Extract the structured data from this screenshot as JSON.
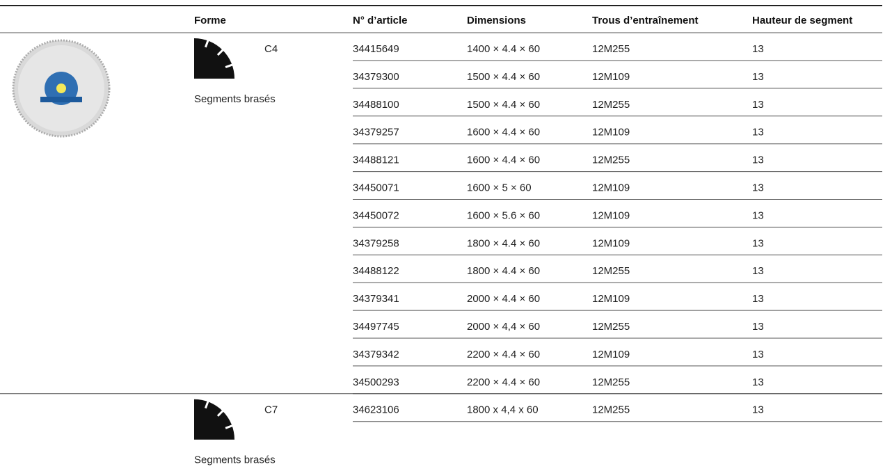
{
  "table": {
    "headers": [
      "Forme",
      "N° d’article",
      "Dimensions",
      "Trous d’entraînement",
      "Hauteur de segment"
    ],
    "groups": [
      {
        "shape": "C4",
        "note": "Segments brasés",
        "rows": [
          [
            "34415649",
            "1400 × 4.4 × 60",
            "12M255",
            "13"
          ],
          [
            "34379300",
            "1500 × 4.4 × 60",
            "12M109",
            "13"
          ],
          [
            "34488100",
            "1500 × 4.4 × 60",
            "12M255",
            "13"
          ],
          [
            "34379257",
            "1600 × 4.4 × 60",
            "12M109",
            "13"
          ],
          [
            "34488121",
            "1600 × 4.4 × 60",
            "12M255",
            "13"
          ],
          [
            "34450071",
            "1600 × 5 × 60",
            "12M109",
            "13"
          ],
          [
            "34450072",
            "1600 × 5.6 × 60",
            "12M109",
            "13"
          ],
          [
            "34379258",
            "1800 × 4.4 × 60",
            "12M109",
            "13"
          ],
          [
            "34488122",
            "1800 × 4.4 × 60",
            "12M255",
            "13"
          ],
          [
            "34379341",
            "2000 × 4.4 × 60",
            "12M109",
            "13"
          ],
          [
            "34497745",
            "2000 × 4,4 × 60",
            "12M255",
            "13"
          ],
          [
            "34379342",
            "2200 × 4.4 × 60",
            "12M109",
            "13"
          ],
          [
            "34500293",
            "2200 × 4.4 × 60",
            "12M255",
            "13"
          ]
        ]
      },
      {
        "shape": "C7",
        "note": "Segments brasés",
        "rows": [
          [
            "34623106",
            "1800 x 4,4 x 60",
            "12M255",
            "13"
          ]
        ]
      }
    ]
  }
}
